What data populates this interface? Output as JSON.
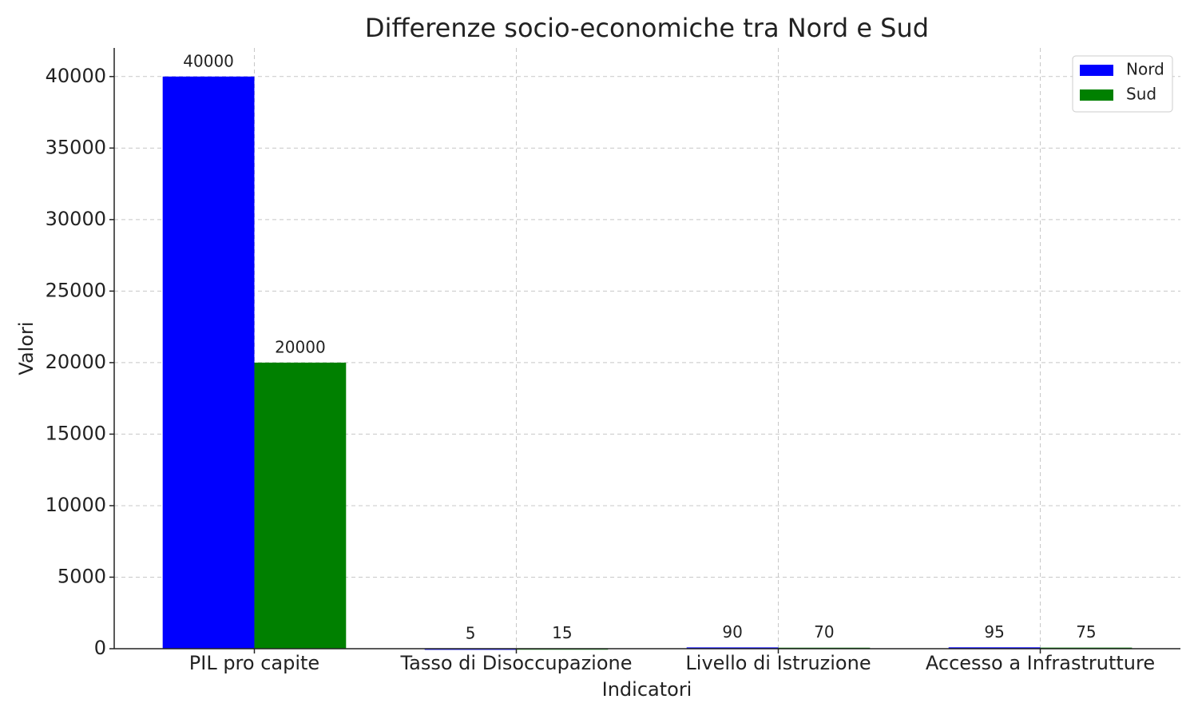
{
  "chart_data": {
    "type": "bar",
    "title": "Differenze socio-economiche tra Nord e Sud",
    "x_label": "Indicatori",
    "y_label": "Valori",
    "categories": [
      "PIL pro capite",
      "Tasso di Disoccupazione",
      "Livello di Istruzione",
      "Accesso a Infrastrutture"
    ],
    "series": [
      {
        "name": "Nord",
        "color": "#0000ff",
        "values": [
          40000,
          5,
          90,
          95
        ]
      },
      {
        "name": "Sud",
        "color": "#008000",
        "values": [
          20000,
          15,
          70,
          75
        ]
      }
    ],
    "ylim": [
      0,
      42000
    ],
    "yticks": [
      0,
      5000,
      10000,
      15000,
      20000,
      25000,
      30000,
      35000,
      40000
    ],
    "grid": true,
    "legend": "upper right"
  }
}
